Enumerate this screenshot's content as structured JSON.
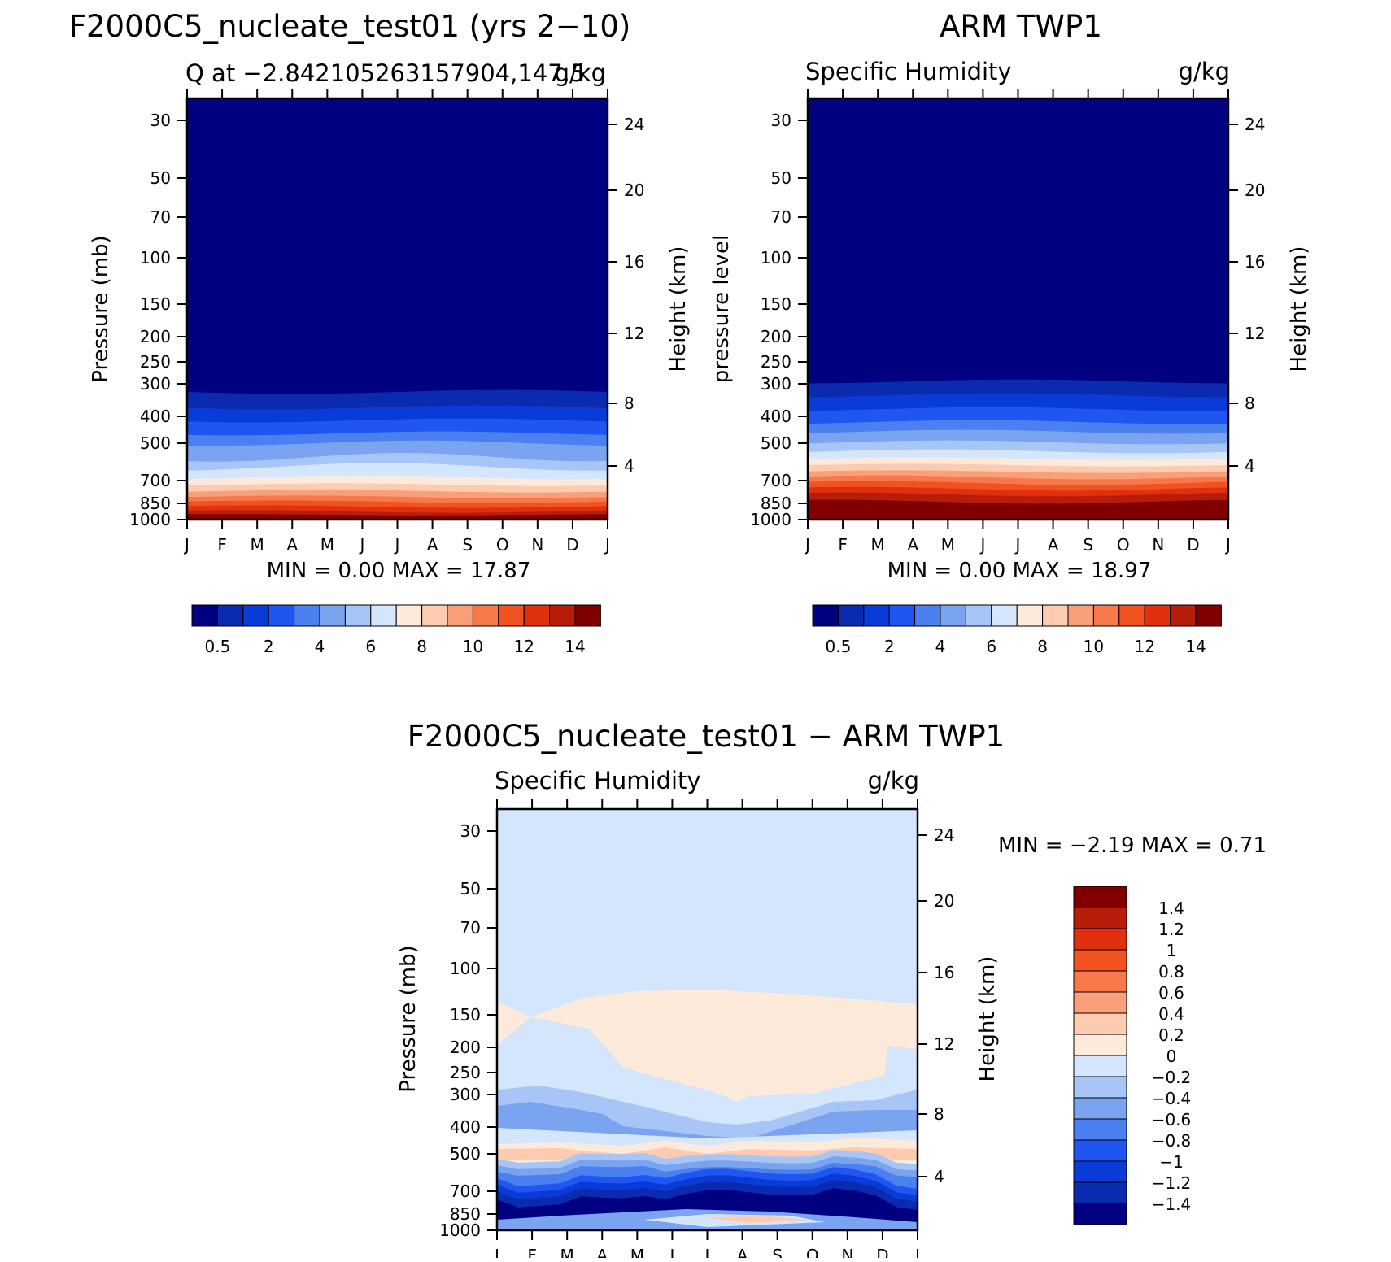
{
  "panels": [
    {
      "id": "model",
      "title": "F2000C5_nucleate_test01 (yrs 2−10)",
      "left_label": "Q at −2.842105263157904,147.5",
      "right_label": "g/kg",
      "ylabel": "Pressure (mb)",
      "y2label": "Height (km)",
      "minmax": "MIN =     0.00  MAX =    17.87"
    },
    {
      "id": "obs",
      "title": "ARM TWP1",
      "left_label": "Specific Humidity",
      "right_label": "g/kg",
      "ylabel": "pressure level",
      "y2label": "Height (km)",
      "minmax": "MIN =     0.00  MAX =    18.97"
    },
    {
      "id": "diff",
      "title": "F2000C5_nucleate_test01 − ARM TWP1",
      "left_label": "Specific Humidity",
      "right_label": "g/kg",
      "ylabel": "Pressure (mb)",
      "y2label": "Height (km)",
      "minmax": "MIN =    −2.19  MAX =     0.71"
    }
  ],
  "chart_data": [
    {
      "type": "heatmap",
      "title": "F2000C5_nucleate_test01 (yrs 2−10)",
      "subtitle": "Q at −2.842105263157904,147.5",
      "units": "g/kg",
      "x_ticks": [
        "J",
        "F",
        "M",
        "A",
        "M",
        "J",
        "J",
        "A",
        "S",
        "O",
        "N",
        "D",
        "J"
      ],
      "pressure_ticks": [
        30,
        50,
        70,
        100,
        150,
        200,
        250,
        300,
        400,
        500,
        700,
        850,
        1000
      ],
      "height_ticks_km": [
        4,
        8,
        12,
        16,
        20,
        24
      ],
      "ylabel": "Pressure (mb)",
      "y2label": "Height (km)",
      "min": 0.0,
      "max": 17.87,
      "colorbar_labels": [
        "0.5",
        "2",
        "4",
        "6",
        "8",
        "10",
        "12",
        "14"
      ]
    },
    {
      "type": "heatmap",
      "title": "ARM TWP1",
      "subtitle": "Specific Humidity",
      "units": "g/kg",
      "x_ticks": [
        "J",
        "F",
        "M",
        "A",
        "M",
        "J",
        "J",
        "A",
        "S",
        "O",
        "N",
        "D",
        "J"
      ],
      "pressure_ticks": [
        30,
        50,
        70,
        100,
        150,
        200,
        250,
        300,
        400,
        500,
        700,
        850,
        1000
      ],
      "height_ticks_km": [
        4,
        8,
        12,
        16,
        20,
        24
      ],
      "ylabel": "pressure level",
      "y2label": "Height (km)",
      "min": 0.0,
      "max": 18.97,
      "colorbar_labels": [
        "0.5",
        "2",
        "4",
        "6",
        "8",
        "10",
        "12",
        "14"
      ]
    },
    {
      "type": "heatmap",
      "title": "F2000C5_nucleate_test01 − ARM TWP1",
      "subtitle": "Specific Humidity",
      "units": "g/kg",
      "x_ticks": [
        "J",
        "F",
        "M",
        "A",
        "M",
        "J",
        "J",
        "A",
        "S",
        "O",
        "N",
        "D",
        "J"
      ],
      "pressure_ticks": [
        30,
        50,
        70,
        100,
        150,
        200,
        250,
        300,
        400,
        500,
        700,
        850,
        1000
      ],
      "height_ticks_km": [
        4,
        8,
        12,
        16,
        20,
        24
      ],
      "ylabel": "Pressure (mb)",
      "y2label": "Height (km)",
      "min": -2.19,
      "max": 0.71,
      "colorbar_labels": [
        "1.4",
        "1.2",
        "1",
        "0.8",
        "0.6",
        "0.4",
        "0.2",
        "0",
        "−0.2",
        "−0.4",
        "−0.6",
        "−0.8",
        "−1",
        "−1.2",
        "−1.4"
      ]
    }
  ],
  "colors": {
    "seq_palette": [
      "#000080",
      "#0a2bb0",
      "#0a3ad8",
      "#1f55f0",
      "#4a80f0",
      "#7aa3f0",
      "#a8c5f8",
      "#d3e6fb",
      "#feeada",
      "#fccbb0",
      "#f9a07a",
      "#f7784a",
      "#f2521f",
      "#e0300e",
      "#b81c0a",
      "#800000"
    ],
    "diff_palette": [
      "#800000",
      "#b81c0a",
      "#e0300e",
      "#f2521f",
      "#f7784a",
      "#f9a07a",
      "#fccbb0",
      "#feeada",
      "#d3e6fb",
      "#a8c5f8",
      "#7aa3f0",
      "#4a80f0",
      "#1f55f0",
      "#0a3ad8",
      "#0a2bb0",
      "#000080"
    ]
  }
}
